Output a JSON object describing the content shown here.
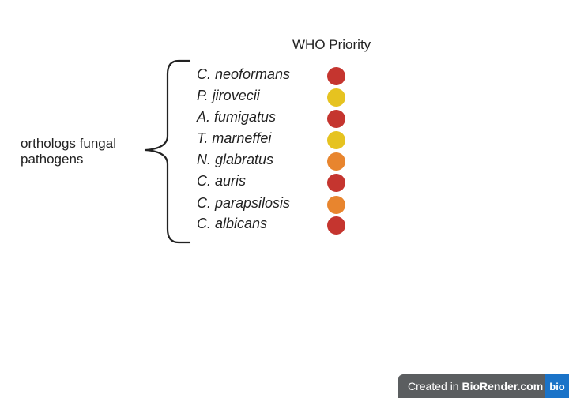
{
  "header": {
    "title": "WHO Priority"
  },
  "group_label": {
    "line1": "orthologs fungal",
    "line2": "pathogens"
  },
  "species": [
    {
      "name": "C. neoformans",
      "color": "#c5352f"
    },
    {
      "name": "P. jirovecii",
      "color": "#e6c320"
    },
    {
      "name": "A. fumigatus",
      "color": "#c5352f"
    },
    {
      "name": "T. marneffei",
      "color": "#e6c320"
    },
    {
      "name": "N. glabratus",
      "color": "#e8852e"
    },
    {
      "name": "C. auris",
      "color": "#c5352f"
    },
    {
      "name": "C. parapsilosis",
      "color": "#e8852e"
    },
    {
      "name": "C. albicans",
      "color": "#c5352f"
    }
  ],
  "footer": {
    "prefix": "Created in ",
    "brand": "BioRender.com",
    "logo": "bio"
  }
}
